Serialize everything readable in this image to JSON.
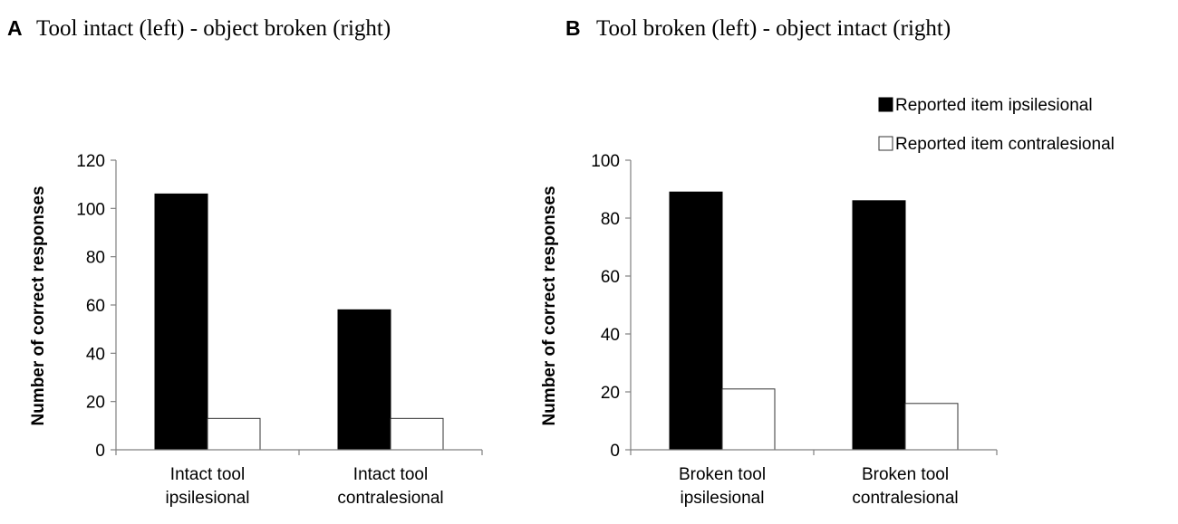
{
  "legend": {
    "entries": [
      {
        "label": "Reported item ipsilesional",
        "color": "#000000"
      },
      {
        "label": "Reported item contralesional",
        "color": "#ffffff"
      }
    ]
  },
  "chart_data": [
    {
      "type": "bar",
      "panel": "A",
      "title": "Tool intact (left) - object broken (right)",
      "ylabel": "Number of correct responses",
      "xlabel": "",
      "ylim": [
        0,
        120
      ],
      "yticks": [
        0,
        20,
        40,
        60,
        80,
        100,
        120
      ],
      "categories": [
        [
          "Intact tool",
          "ipsilesional"
        ],
        [
          "Intact tool",
          "contralesional"
        ]
      ],
      "series": [
        {
          "name": "Reported item ipsilesional",
          "values": [
            106,
            58
          ]
        },
        {
          "name": "Reported item contralesional",
          "values": [
            13,
            13
          ]
        }
      ]
    },
    {
      "type": "bar",
      "panel": "B",
      "title": "Tool broken (left) - object intact (right)",
      "ylabel": "Number of correct responses",
      "xlabel": "",
      "ylim": [
        0,
        100
      ],
      "yticks": [
        0,
        20,
        40,
        60,
        80,
        100
      ],
      "categories": [
        [
          "Broken tool",
          "ipsilesional"
        ],
        [
          "Broken tool",
          "contralesional"
        ]
      ],
      "series": [
        {
          "name": "Reported item ipsilesional",
          "values": [
            89,
            86
          ]
        },
        {
          "name": "Reported item contralesional",
          "values": [
            21,
            16
          ]
        }
      ]
    }
  ]
}
